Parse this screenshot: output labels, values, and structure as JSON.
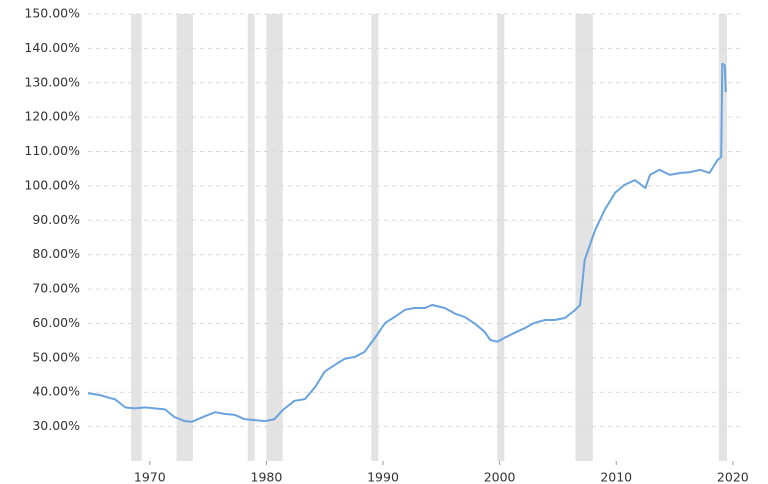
{
  "chart_data": {
    "type": "line",
    "color": "#6aa3de",
    "band_color": "#e3e3e3",
    "grid": true,
    "xlim": [
      1964.7,
      2020.7
    ],
    "xticks": [
      1970,
      1980,
      1990,
      2000,
      2010,
      2020
    ],
    "ylim": [
      20,
      150
    ],
    "yticks": [
      {
        "value": 30,
        "label": "30.00%"
      },
      {
        "value": 40,
        "label": "40.00%"
      },
      {
        "value": 50,
        "label": "50.00%"
      },
      {
        "value": 60,
        "label": "60.00%"
      },
      {
        "value": 70,
        "label": "70.00%"
      },
      {
        "value": 80,
        "label": "80.00%"
      },
      {
        "value": 90,
        "label": "90.00%"
      },
      {
        "value": 100,
        "label": "100.00%"
      },
      {
        "value": 110,
        "label": "110.00%"
      },
      {
        "value": 120,
        "label": "120.00%"
      },
      {
        "value": 130,
        "label": "130.00%"
      },
      {
        "value": 140,
        "label": "140.00%"
      },
      {
        "value": 150,
        "label": "150.00%"
      }
    ],
    "bands": [
      [
        1968.4,
        1969.3
      ],
      [
        1972.3,
        1973.7
      ],
      [
        1978.4,
        1979.0
      ],
      [
        1980.0,
        1981.4
      ],
      [
        1989.0,
        1989.6
      ],
      [
        1999.8,
        2000.4
      ],
      [
        2006.5,
        2008.0
      ],
      [
        2018.8,
        2019.5
      ]
    ],
    "x": [
      1964.7,
      1965.7,
      1966.6,
      1967.0,
      1967.9,
      1968.7,
      1969.6,
      1970.4,
      1971.3,
      1972.1,
      1973.0,
      1973.6,
      1974.7,
      1975.6,
      1976.4,
      1977.3,
      1978.1,
      1979.0,
      1979.9,
      1980.7,
      1981.4,
      1982.4,
      1983.3,
      1984.2,
      1985.0,
      1985.9,
      1986.7,
      1987.6,
      1988.4,
      1989.3,
      1990.2,
      1991.0,
      1991.9,
      1992.7,
      1993.6,
      1994.2,
      1995.3,
      1996.2,
      1997.0,
      1997.9,
      1998.7,
      1999.2,
      1999.8,
      2000.4,
      2001.3,
      2002.2,
      2003.0,
      2003.9,
      2004.7,
      2005.6,
      2006.4,
      2006.9,
      2007.3,
      2008.2,
      2009.0,
      2009.9,
      2010.7,
      2011.6,
      2012.5,
      2012.9,
      2013.7,
      2014.6,
      2015.5,
      2016.3,
      2017.2,
      2018.0,
      2018.7,
      2019.0,
      2019.1,
      2019.3,
      2019.4
    ],
    "values": [
      39.7,
      39.2,
      38.3,
      38.0,
      35.6,
      35.3,
      35.6,
      35.3,
      35.0,
      32.8,
      31.6,
      31.4,
      33.0,
      34.2,
      33.7,
      33.4,
      32.2,
      31.9,
      31.6,
      32.2,
      34.8,
      37.5,
      38.0,
      41.6,
      46.0,
      48.0,
      49.7,
      50.3,
      51.7,
      55.8,
      60.2,
      61.9,
      64.0,
      64.5,
      64.5,
      65.4,
      64.5,
      62.8,
      61.9,
      59.9,
      57.6,
      55.2,
      54.7,
      55.8,
      57.3,
      58.7,
      60.2,
      61.0,
      61.0,
      61.6,
      63.7,
      65.4,
      78.5,
      87.2,
      93.0,
      98.0,
      100.3,
      101.7,
      99.4,
      103.2,
      104.7,
      103.2,
      103.8,
      104.0,
      104.7,
      103.8,
      107.6,
      108.4,
      135.5,
      135.2,
      127.3
    ]
  }
}
